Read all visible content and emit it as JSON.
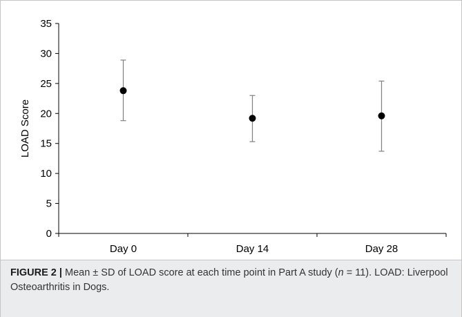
{
  "chart_data": {
    "type": "scatter",
    "ylabel": "LOAD Score",
    "xlabel": "",
    "categories": [
      "Day 0",
      "Day 14",
      "Day 28"
    ],
    "series": [
      {
        "values": [
          23.8,
          19.2,
          19.6
        ],
        "error_low": [
          18.8,
          15.3,
          13.7
        ],
        "error_high": [
          28.9,
          23.0,
          25.4
        ]
      }
    ],
    "ylim": [
      0,
      35
    ],
    "yticks": [
      0,
      5,
      10,
      15,
      20,
      25,
      30,
      35
    ],
    "grid": false,
    "colors": {
      "marker": "#000000",
      "errorbar": "#808080",
      "axis": "#000000"
    }
  },
  "caption": {
    "label": "FIGURE 2",
    "separator": "|",
    "text_1": " Mean ± SD of LOAD score at each time point in Part A study (",
    "n_symbol": "n",
    "text_2": " = 11). LOAD: Liverpool Osteoarthritis in Dogs."
  }
}
